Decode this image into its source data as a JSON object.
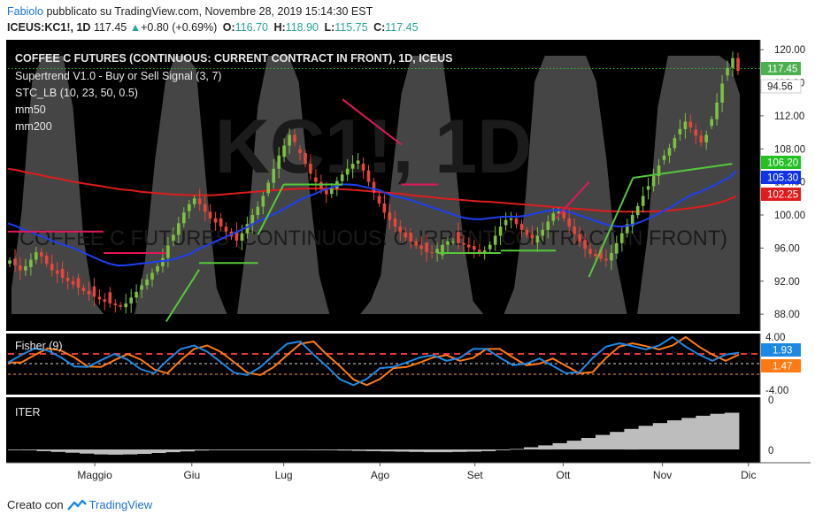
{
  "header": {
    "author": "Fabiolo",
    "published_text": "pubblicato su TradingView.com, Novembre 28, 2019 15:14:30 EST",
    "symbol": "ICEUS:KC1!, 1D",
    "price": "117.45",
    "change": "+0.80 (+0.69%)",
    "o_label": "O:",
    "o_value": "116.70",
    "h_label": "H:",
    "h_value": "118.90",
    "l_label": "L:",
    "l_value": "115.75",
    "c_label": "C:",
    "c_value": "117.45"
  },
  "watermark": "KC1!, 1D",
  "watermark_sub": "COFFEE C FUTURES (CONTINUOUS: CURRENT CONTRACT IN FRONT)",
  "legend": {
    "title": "COFFEE C FUTURES (CONTINUOUS: CURRENT CONTRACT IN FRONT), 1D, ICEUS",
    "supertrend": "Supertrend V1.0 - Buy or Sell Signal (3, 7)",
    "stc": "STC_LB (10, 23, 50, 0.5)",
    "mm50": "mm50",
    "mm200": "mm200"
  },
  "badges": {
    "last": "117.45",
    "level2": "94.56",
    "supertrend": "106.20",
    "mm50": "105.30",
    "mm200": "102.25",
    "fisher_a": "1.93",
    "fisher_b": "1.47",
    "iter_top": "0"
  },
  "fisher": {
    "title": "Fisher (9)",
    "ticks": [
      "4.00",
      "-4.00"
    ]
  },
  "iter": {
    "title": "ITER",
    "ticks": [
      "0",
      "0"
    ]
  },
  "colors": {
    "background": "#000000",
    "up": "#7dc142",
    "down": "#e8463a",
    "mm50": "#1f3ff0",
    "mm200": "#dd1c1c",
    "supertrend_up": "#55c93a",
    "supertrend_down": "#e0185a",
    "stc_band": "#5c5c5c",
    "fisher": "#1e88e5",
    "fisher_signal": "#ff7a12",
    "iter_hist": "#bdbdbd"
  },
  "footer": {
    "prefix": "Creato con",
    "brand": "TradingView"
  },
  "chart_data": {
    "type": "candlestick",
    "title": "COFFEE C FUTURES (CONTINUOUS: CURRENT CONTRACT IN FRONT), 1D, ICEUS",
    "x_labels": [
      "Maggio",
      "Giu",
      "Lug",
      "Ago",
      "Set",
      "Ott",
      "Nov",
      "Dic"
    ],
    "y_ticks": [
      88.0,
      92.0,
      96.0,
      100.0,
      104.0,
      108.0,
      112.0,
      116.0,
      120.0
    ],
    "ylim": [
      86.3,
      121.2
    ],
    "close": [
      94.5,
      93.9,
      93.3,
      93.8,
      94.6,
      95.5,
      95.0,
      94.1,
      93.3,
      92.9,
      92.4,
      92.0,
      91.6,
      91.2,
      90.8,
      90.4,
      90.1,
      89.8,
      89.5,
      89.3,
      89.1,
      88.9,
      89.3,
      90.0,
      90.7,
      91.5,
      92.2,
      93.0,
      93.8,
      94.8,
      96.3,
      97.6,
      99.0,
      100.3,
      101.3,
      102.0,
      101.3,
      100.4,
      99.6,
      99.1,
      98.6,
      98.0,
      97.4,
      96.9,
      97.8,
      98.9,
      100.0,
      101.0,
      102.3,
      103.9,
      105.6,
      107.2,
      108.4,
      109.7,
      108.8,
      107.5,
      106.2,
      105.0,
      104.0,
      103.2,
      102.5,
      103.2,
      104.1,
      104.9,
      105.6,
      106.2,
      106.6,
      105.4,
      104.0,
      102.7,
      101.4,
      100.3,
      99.4,
      98.6,
      97.9,
      97.3,
      96.8,
      96.3,
      95.9,
      95.5,
      95.4,
      95.9,
      96.4,
      96.8,
      96.8,
      96.6,
      96.4,
      96.1,
      95.8,
      95.5,
      95.7,
      96.4,
      97.5,
      98.6,
      99.4,
      99.6,
      98.9,
      98.2,
      97.6,
      97.2,
      97.5,
      98.2,
      99.2,
      100.2,
      100.4,
      99.6,
      98.6,
      97.7,
      96.8,
      95.9,
      95.3,
      95.0,
      94.7,
      94.5,
      95.4,
      96.6,
      97.8,
      98.9,
      100.0,
      101.1,
      102.3,
      103.5,
      104.7,
      106.0,
      107.2,
      108.1,
      109.3,
      110.4,
      111.3,
      110.6,
      109.6,
      108.8,
      109.7,
      111.6,
      113.6,
      115.9,
      117.8,
      119.0,
      117.45
    ],
    "mm50": [
      99.0,
      98.7,
      98.3,
      98.0,
      97.6,
      97.3,
      96.9,
      96.6,
      96.3,
      96.0,
      95.6,
      95.2,
      94.8,
      94.4,
      94.1,
      93.9,
      93.9,
      94.0,
      94.1,
      94.2,
      94.3,
      94.4,
      94.5,
      94.7,
      95.0,
      95.3,
      95.8,
      96.2,
      96.6,
      97.0,
      97.4,
      97.8,
      98.2,
      98.6,
      99.1,
      99.5,
      99.9,
      100.3,
      100.8,
      101.3,
      101.8,
      102.2,
      102.5,
      102.9,
      103.2,
      103.5,
      103.7,
      103.7,
      103.6,
      103.4,
      103.2,
      103.0,
      102.6,
      102.3,
      102.1,
      101.9,
      101.6,
      101.3,
      101.0,
      100.7,
      100.4,
      100.1,
      99.8,
      99.6,
      99.5,
      99.5,
      99.6,
      99.7,
      99.8,
      99.8,
      99.8,
      99.9,
      100.1,
      100.3,
      100.5,
      100.6,
      100.6,
      100.4,
      100.1,
      99.8,
      99.5,
      99.2,
      98.9,
      98.7,
      98.6,
      98.7,
      98.9,
      99.2,
      99.6,
      100.0,
      100.5,
      100.9,
      101.5,
      102.0,
      102.5,
      102.8,
      103.2,
      103.6,
      104.1,
      104.5,
      105.3
    ],
    "mm200": [
      105.6,
      105.4,
      105.1,
      104.9,
      104.6,
      104.4,
      104.1,
      103.9,
      103.7,
      103.5,
      103.3,
      103.1,
      103.0,
      102.8,
      102.7,
      102.6,
      102.5,
      102.45,
      102.4,
      102.4,
      102.4,
      102.5,
      102.6,
      102.7,
      102.8,
      102.9,
      103.0,
      103.1,
      103.15,
      103.2,
      103.2,
      103.2,
      103.15,
      103.1,
      103.0,
      102.9,
      102.8,
      102.7,
      102.6,
      102.45,
      102.3,
      102.2,
      102.05,
      101.95,
      101.85,
      101.75,
      101.65,
      101.6,
      101.5,
      101.4,
      101.3,
      101.2,
      101.1,
      101.0,
      100.9,
      100.8,
      100.7,
      100.6,
      100.5,
      100.45,
      100.4,
      100.4,
      100.4,
      100.45,
      100.5,
      100.6,
      100.75,
      100.9,
      101.1,
      101.4,
      101.75,
      102.25
    ],
    "supertrend": [
      {
        "from": 0.0,
        "to": 0.13,
        "values": [
          98.0,
          98.0
        ],
        "dir": "down"
      },
      {
        "from": 0.13,
        "to": 0.215,
        "values": [
          95.4,
          95.4
        ],
        "dir": "down"
      },
      {
        "from": 0.215,
        "to": 0.26,
        "values": [
          87.1,
          93.4
        ],
        "dir": "up"
      },
      {
        "from": 0.26,
        "to": 0.34,
        "values": [
          94.2,
          94.2
        ],
        "dir": "up"
      },
      {
        "from": 0.34,
        "to": 0.375,
        "values": [
          97.6,
          103.7
        ],
        "dir": "up"
      },
      {
        "from": 0.375,
        "to": 0.455,
        "values": [
          103.7,
          103.7
        ],
        "dir": "up"
      },
      {
        "from": 0.455,
        "to": 0.535,
        "values": [
          114.0,
          108.5
        ],
        "dir": "down"
      },
      {
        "from": 0.535,
        "to": 0.585,
        "values": [
          103.7,
          103.7
        ],
        "dir": "down"
      },
      {
        "from": 0.585,
        "to": 0.67,
        "values": [
          95.4,
          95.4
        ],
        "dir": "up"
      },
      {
        "from": 0.67,
        "to": 0.745,
        "values": [
          95.7,
          95.7
        ],
        "dir": "up"
      },
      {
        "from": 0.745,
        "to": 0.79,
        "values": [
          99.6,
          104.0
        ],
        "dir": "down"
      },
      {
        "from": 0.79,
        "to": 0.85,
        "values": [
          92.5,
          104.5
        ],
        "dir": "up"
      },
      {
        "from": 0.85,
        "to": 0.985,
        "values": [
          104.5,
          106.2
        ],
        "dir": "up"
      }
    ],
    "fisher": [
      0.2,
      1.5,
      2.7,
      2.3,
      1.1,
      -0.5,
      -0.6,
      0.6,
      1.7,
      0.7,
      -1.0,
      -1.7,
      0.6,
      2.6,
      3.2,
      2.1,
      0.3,
      -1.6,
      -2.0,
      -0.6,
      1.5,
      3.5,
      3.9,
      1.6,
      -0.5,
      -2.8,
      -3.8,
      -2.7,
      -0.8,
      -0.6,
      0.2,
      1.1,
      1.5,
      0.5,
      1.0,
      2.6,
      2.6,
      1.1,
      -0.3,
      0.0,
      0.9,
      -0.4,
      -1.7,
      -1.5,
      1.0,
      3.0,
      3.6,
      3.1,
      2.5,
      3.2,
      4.7,
      3.0,
      1.6,
      0.5,
      1.6,
      1.93
    ],
    "iter": [
      -0.1,
      -0.3,
      -0.6,
      -0.9,
      -1.2,
      -1.5,
      -1.8,
      -1.9,
      -1.8,
      -1.6,
      -1.3,
      -1.0,
      -0.7,
      -0.4,
      -0.2,
      -0.1,
      -0.1,
      -0.1,
      -0.1,
      -0.2,
      -0.2,
      -0.3,
      -0.3,
      -0.4,
      -0.5,
      -0.6,
      -0.7,
      -0.8,
      -0.9,
      -1.0,
      -1.0,
      -0.9,
      -0.8,
      -0.6,
      -0.3,
      0.2,
      0.8,
      1.5,
      2.3,
      3.2,
      4.2,
      5.3,
      6.4,
      7.5,
      8.6,
      9.6,
      10.6,
      11.5,
      12.3,
      13.0,
      13.4
    ]
  }
}
